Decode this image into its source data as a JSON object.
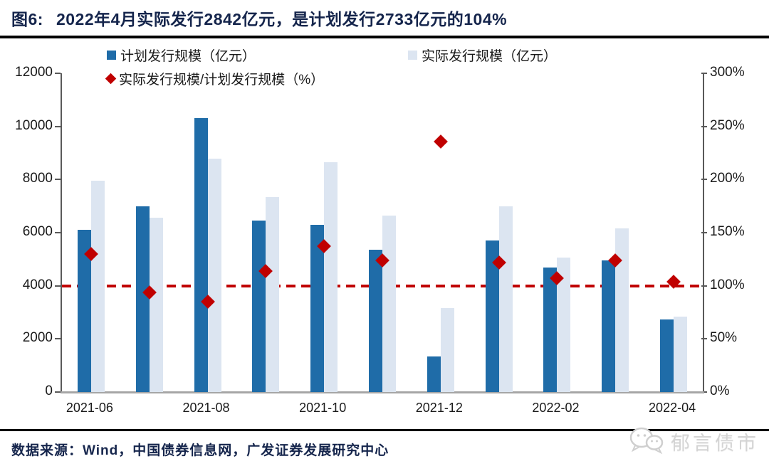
{
  "title": {
    "prefix": "图6:",
    "text": "2022年4月实际发行2842亿元，是计划发行2733亿元的104%"
  },
  "legend": {
    "planned_label": "计划发行规模（亿元）",
    "actual_label": "实际发行规模（亿元）",
    "ratio_label": "实际发行规模/计划发行规模（%）"
  },
  "colors": {
    "planned_bar": "#1f6ca8",
    "actual_bar": "#dce5f1",
    "ratio_marker": "#c00000",
    "reference_line": "#c00000",
    "title_navy": "#15254c"
  },
  "chart_data": {
    "type": "bar",
    "categories": [
      "2021-06",
      "2021-07",
      "2021-08",
      "2021-09",
      "2021-10",
      "2021-11",
      "2021-12",
      "2022-01",
      "2022-02",
      "2022-03",
      "2022-04"
    ],
    "series": [
      {
        "name": "计划发行规模（亿元）",
        "type": "bar",
        "axis": "left",
        "color": "#1f6ca8",
        "values": [
          6100,
          7000,
          10300,
          6450,
          6300,
          5350,
          1340,
          5700,
          4700,
          4950,
          2733
        ]
      },
      {
        "name": "实际发行规模（亿元）",
        "type": "bar",
        "axis": "left",
        "color": "#dce5f1",
        "values": [
          7950,
          6550,
          8780,
          7350,
          8650,
          6650,
          3170,
          7000,
          5050,
          6150,
          2842
        ]
      },
      {
        "name": "实际发行规模/计划发行规模（%）",
        "type": "scatter",
        "axis": "right",
        "color": "#c00000",
        "values": [
          130,
          94,
          85,
          114,
          137,
          124,
          236,
          122,
          107,
          124,
          104
        ]
      }
    ],
    "left_axis": {
      "min": 0,
      "max": 12000,
      "tick_labels": [
        "0",
        "2000",
        "4000",
        "6000",
        "8000",
        "10000",
        "12000"
      ],
      "tick_values": [
        0,
        2000,
        4000,
        6000,
        8000,
        10000,
        12000
      ]
    },
    "right_axis": {
      "min": 0,
      "max": 300,
      "tick_labels": [
        "0%",
        "50%",
        "100%",
        "150%",
        "200%",
        "250%",
        "300%"
      ],
      "tick_values": [
        0,
        50,
        100,
        150,
        200,
        250,
        300
      ]
    },
    "x_tick_labels": [
      "2021-06",
      "2021-08",
      "2021-10",
      "2021-12",
      "2022-02",
      "2022-04"
    ],
    "x_tick_every": 2,
    "reference_line": {
      "axis": "right",
      "value": 100,
      "style": "dashed",
      "color": "#c00000"
    },
    "grid": "off",
    "legend_position": "top"
  },
  "footer": {
    "source": "数据来源：Wind，中国债券信息网，广发证券发展研究中心",
    "watermark": "郁言债市"
  }
}
